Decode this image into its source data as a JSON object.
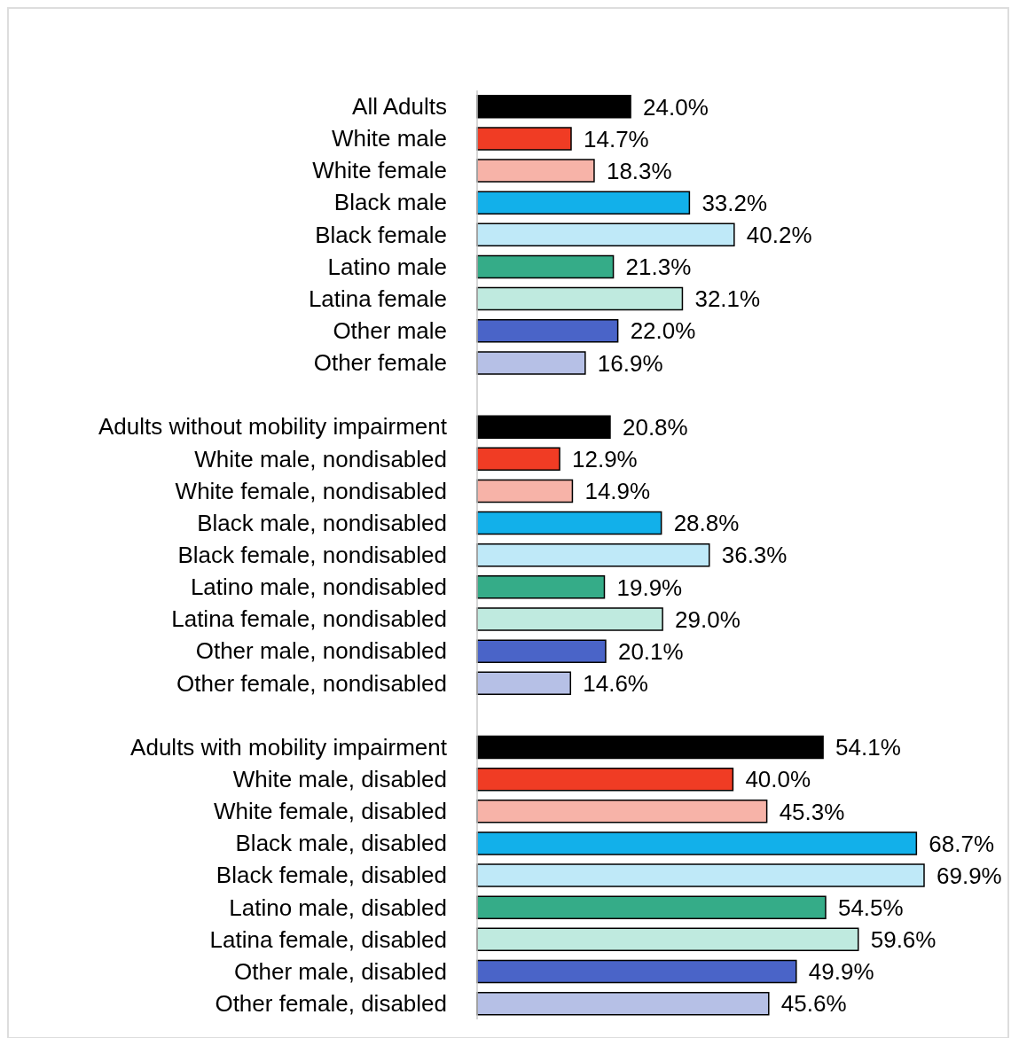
{
  "chart_data": {
    "type": "bar",
    "orientation": "horizontal",
    "categories": [
      "All Adults",
      "White male",
      "White female",
      "Black male",
      "Black female",
      "Latino male",
      "Latina female",
      "Other male",
      "Other female",
      null,
      "Adults without mobility impairment",
      "White male, nondisabled",
      "White female, nondisabled",
      "Black male, nondisabled",
      "Black female, nondisabled",
      "Latino male, nondisabled",
      "Latina female, nondisabled",
      "Other male, nondisabled",
      "Other female, nondisabled",
      null,
      "Adults with mobility impairment",
      "White male, disabled",
      "White female, disabled",
      "Black male, disabled",
      "Black female, disabled",
      "Latino male, disabled",
      "Latina female, disabled",
      "Other male, disabled",
      "Other female, disabled"
    ],
    "values": [
      24.0,
      14.7,
      18.3,
      33.2,
      40.2,
      21.3,
      32.1,
      22.0,
      16.9,
      null,
      20.8,
      12.9,
      14.9,
      28.8,
      36.3,
      19.9,
      29.0,
      20.1,
      14.6,
      null,
      54.1,
      40.0,
      45.3,
      68.7,
      69.9,
      54.5,
      59.6,
      49.9,
      45.6
    ],
    "value_labels": [
      "24.0%",
      "14.7%",
      "18.3%",
      "33.2%",
      "40.2%",
      "21.3%",
      "32.1%",
      "22.0%",
      "16.9%",
      null,
      "20.8%",
      "12.9%",
      "14.9%",
      "28.8%",
      "36.3%",
      "19.9%",
      "29.0%",
      "20.1%",
      "14.6%",
      null,
      "54.1%",
      "40.0%",
      "45.3%",
      "68.7%",
      "69.9%",
      "54.5%",
      "59.6%",
      "49.9%",
      "45.6%"
    ],
    "colors": [
      "#000000",
      "#f03c24",
      "#f7b3a8",
      "#12b0ea",
      "#bfe9f8",
      "#35ac88",
      "#bfeadf",
      "#4a64c8",
      "#b6c0e6",
      null,
      "#000000",
      "#f03c24",
      "#f7b3a8",
      "#12b0ea",
      "#bfe9f8",
      "#35ac88",
      "#bfeadf",
      "#4a64c8",
      "#b6c0e6",
      null,
      "#000000",
      "#f03c24",
      "#f7b3a8",
      "#12b0ea",
      "#bfe9f8",
      "#35ac88",
      "#bfeadf",
      "#4a64c8",
      "#b6c0e6"
    ],
    "grid": false,
    "legend": false
  }
}
